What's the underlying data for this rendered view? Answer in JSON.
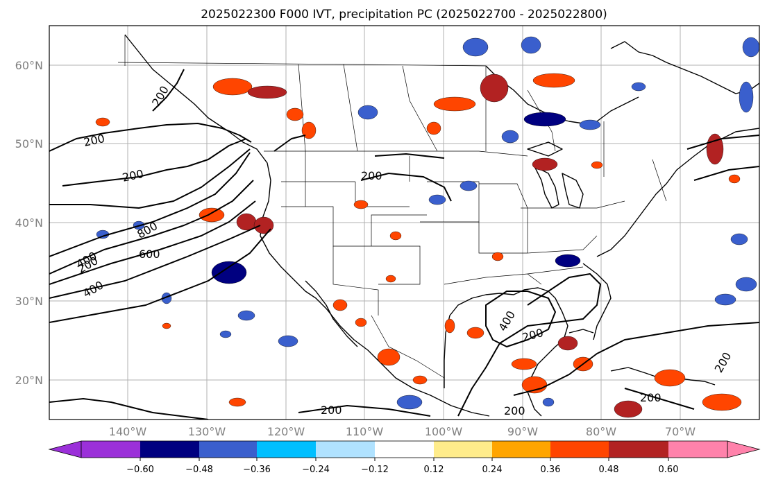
{
  "title": "2025022300 F000 IVT, precipitation PC (2025022700 - 2025022800)",
  "map": {
    "lon_range": [
      -150,
      -60
    ],
    "lat_range": [
      15,
      65
    ],
    "lat_labels": [
      "20°N",
      "30°N",
      "40°N",
      "50°N",
      "60°N"
    ],
    "lon_labels": [
      "140°W",
      "130°W",
      "120°W",
      "110°W",
      "100°W",
      "90°W",
      "80°W",
      "70°W"
    ],
    "ivt_contour_labels": [
      "200",
      "200",
      "200",
      "200",
      "200",
      "200",
      "200",
      "200",
      "200",
      "200",
      "400",
      "400",
      "400",
      "600",
      "800"
    ],
    "grid": true
  },
  "colorbar": {
    "ticks": [
      "−0.60",
      "−0.48",
      "−0.36",
      "−0.24",
      "−0.12",
      "0.12",
      "0.24",
      "0.36",
      "0.48",
      "0.60"
    ],
    "colors": [
      "#9b30d9",
      "#000080",
      "#3a5fcd",
      "#00bfff",
      "#b0e2ff",
      "#ffffff",
      "#ffec8b",
      "#ffa500",
      "#ff4500",
      "#b22222",
      "#ff82ab"
    ]
  }
}
